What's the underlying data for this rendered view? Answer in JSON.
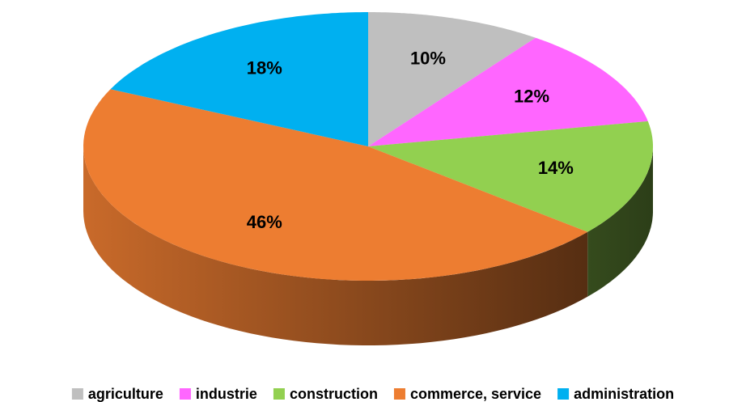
{
  "chart_data": {
    "type": "pie",
    "categories": [
      "agriculture",
      "industrie",
      "construction",
      "commerce, service",
      "administration"
    ],
    "values": [
      10,
      12,
      14,
      46,
      18
    ],
    "value_labels": [
      "10%",
      "12%",
      "14%",
      "46%",
      "18%"
    ],
    "colors": [
      "#bfbfbf",
      "#ff66ff",
      "#92d050",
      "#ed7d31",
      "#00b0f0"
    ],
    "legend": "bottom"
  }
}
